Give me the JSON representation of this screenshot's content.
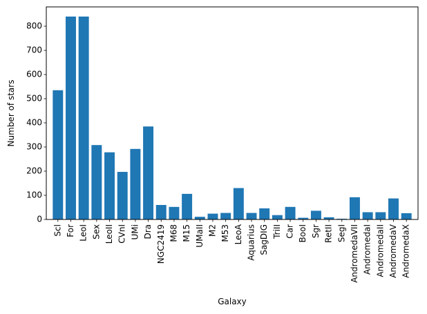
{
  "chart_data": {
    "type": "bar",
    "title": "",
    "xlabel": "Galaxy",
    "ylabel": "Number of stars",
    "ylim": [
      0,
      880
    ],
    "yticks": [
      0,
      100,
      200,
      300,
      400,
      500,
      600,
      700,
      800
    ],
    "grid": false,
    "bar_color": "#1f77b4",
    "categories": [
      "Scl",
      "For",
      "LeoI",
      "Sex",
      "LeoII",
      "CVnI",
      "UMi",
      "Dra",
      "NGC2419",
      "M68",
      "M15",
      "UMaII",
      "M2",
      "M53",
      "LeoA",
      "Aquarius",
      "SagDIG",
      "TriII",
      "Car",
      "BooI",
      "Sgr",
      "RetII",
      "SegI",
      "AndromedaVII",
      "AndromedaI",
      "AndromedaII",
      "AndromedaV",
      "AndromedaX"
    ],
    "values": [
      535,
      840,
      840,
      308,
      278,
      197,
      292,
      385,
      60,
      52,
      106,
      11,
      24,
      27,
      130,
      27,
      46,
      18,
      52,
      7,
      36,
      9,
      3,
      92,
      30,
      30,
      87,
      26
    ]
  }
}
